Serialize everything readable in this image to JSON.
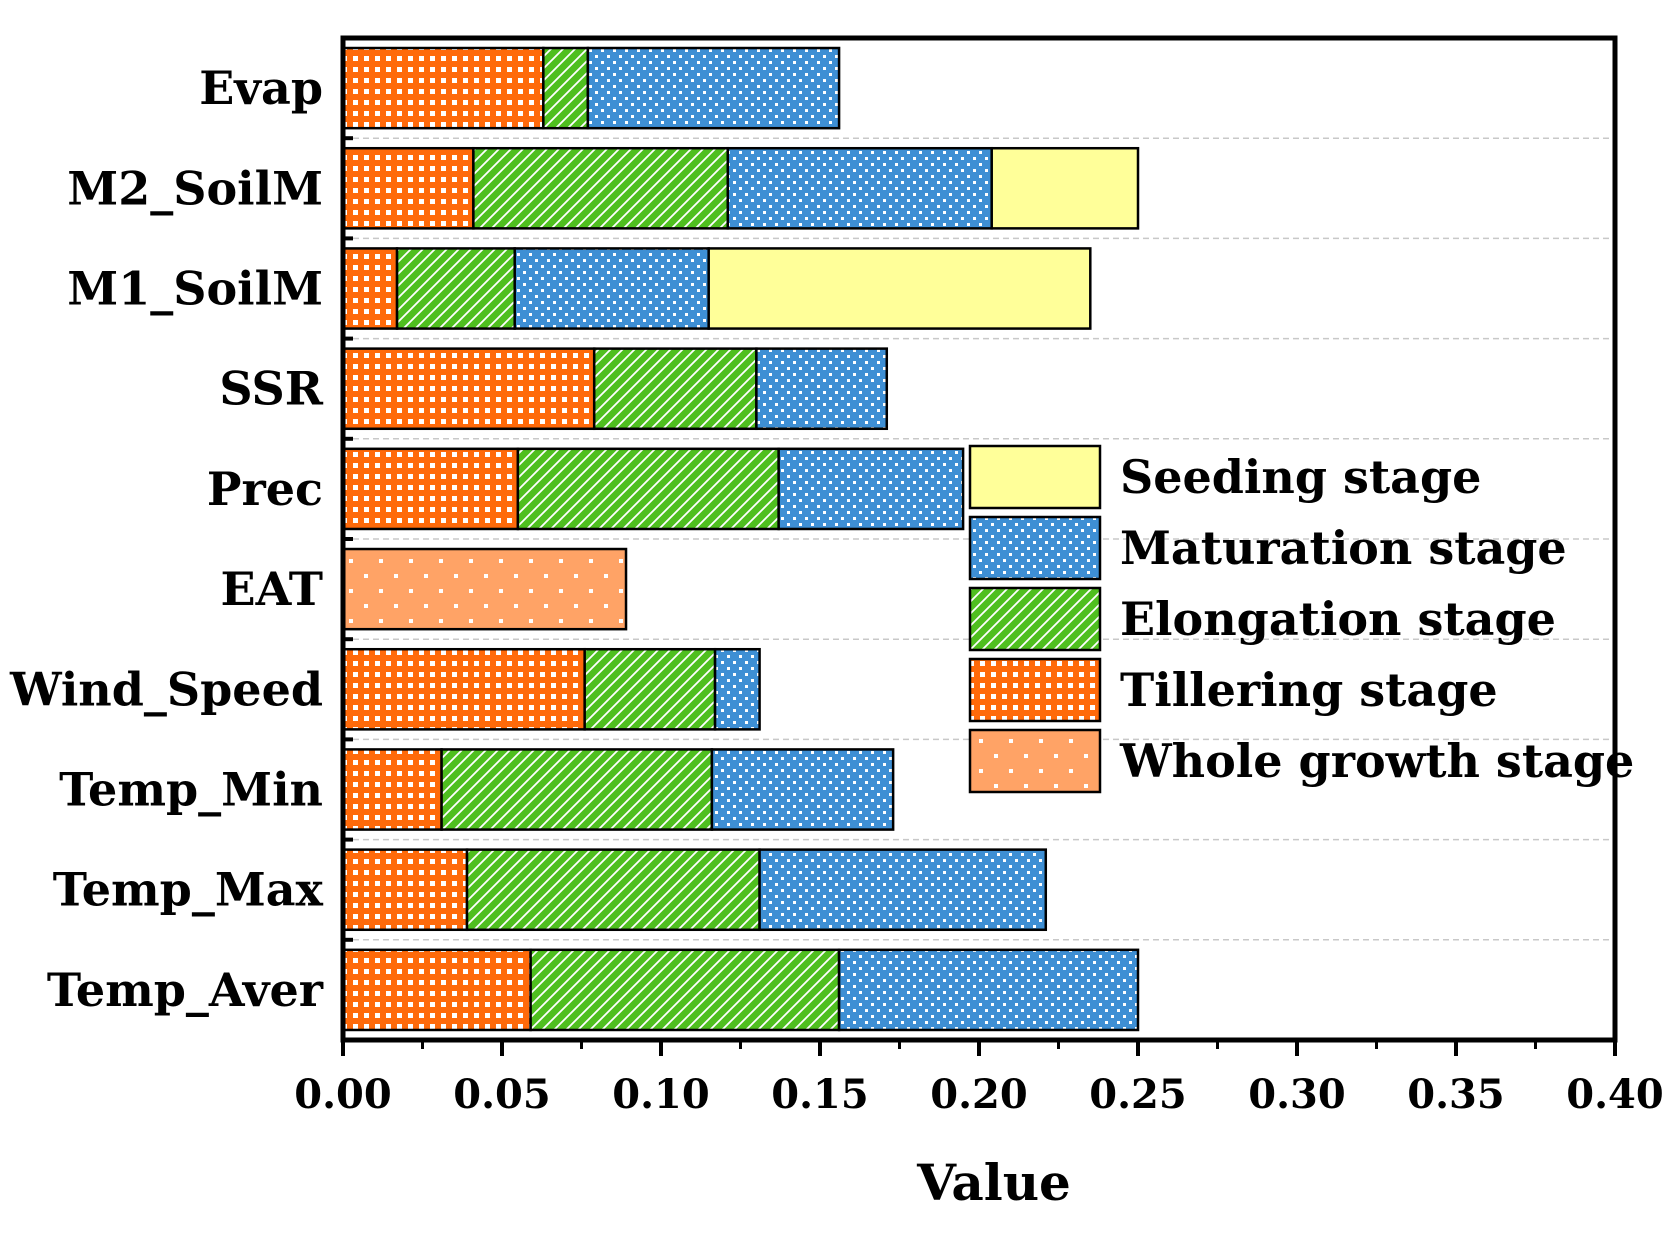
{
  "chart_data": {
    "type": "bar",
    "orientation": "horizontal",
    "stacked": true,
    "title": "",
    "xlabel": "Value",
    "ylabel": "",
    "xlim": [
      0,
      0.4
    ],
    "xticks": [
      "0.00",
      "0.05",
      "0.10",
      "0.15",
      "0.20",
      "0.25",
      "0.30",
      "0.35",
      "0.40"
    ],
    "grid": "horizontal dashed between categories",
    "categories": [
      "Evap",
      "M2_SoilM",
      "M1_SoilM",
      "SSR",
      "Prec",
      "EAT",
      "Wind_Speed",
      "Temp_Min",
      "Temp_Max",
      "Temp_Aver"
    ],
    "series": [
      {
        "name": "Tillering stage",
        "key": "tillering",
        "color": "#ff6a0a",
        "values": [
          0.063,
          0.041,
          0.017,
          0.079,
          0.055,
          0,
          0.076,
          0.031,
          0.039,
          0.059
        ]
      },
      {
        "name": "Elongation stage",
        "key": "elongation",
        "color": "#4fbf1f",
        "values": [
          0.014,
          0.08,
          0.037,
          0.051,
          0.082,
          0,
          0.041,
          0.085,
          0.092,
          0.097
        ]
      },
      {
        "name": "Maturation stage",
        "key": "maturation",
        "color": "#3e8fd4",
        "values": [
          0.079,
          0.083,
          0.061,
          0.041,
          0.058,
          0,
          0.014,
          0.057,
          0.09,
          0.094
        ]
      },
      {
        "name": "Seeding stage",
        "key": "seeding",
        "color": "#ffff99",
        "values": [
          0,
          0.046,
          0.12,
          0,
          0,
          0,
          0,
          0,
          0,
          0
        ]
      },
      {
        "name": "Whole growth stage",
        "key": "whole",
        "color": "#ffa366",
        "values": [
          0,
          0,
          0,
          0,
          0,
          0.089,
          0,
          0,
          0,
          0
        ]
      }
    ],
    "legend": {
      "position": "center-right",
      "entries": [
        "Seeding stage",
        "Maturation stage",
        "Elongation stage",
        "Tillering stage",
        "Whole growth stage"
      ]
    }
  }
}
